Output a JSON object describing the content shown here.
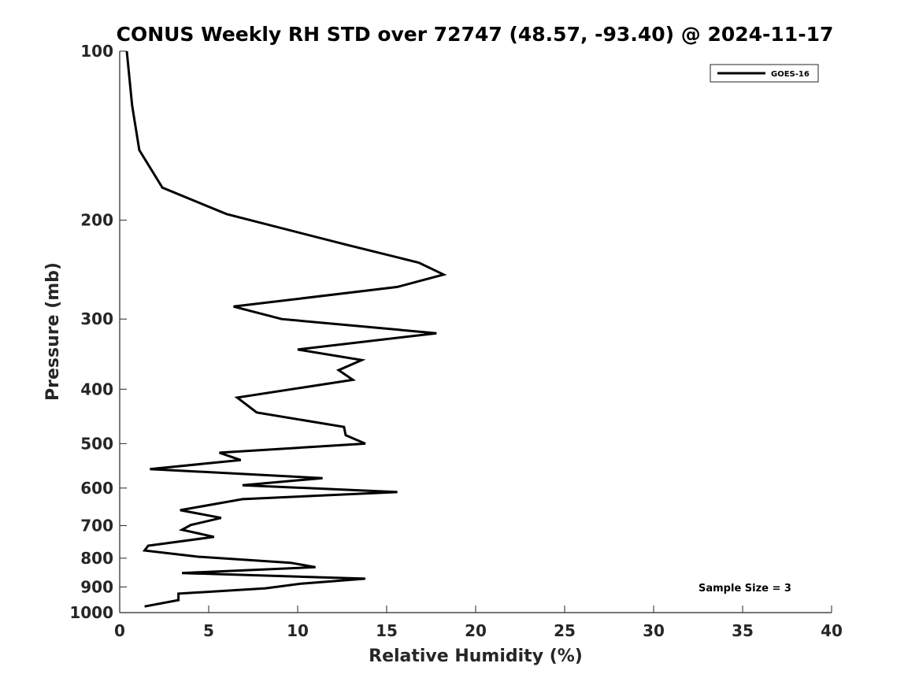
{
  "chart_data": {
    "type": "line",
    "title": "CONUS Weekly RH STD over 72747 (48.57, -93.40) @ 2024-11-17",
    "xlabel": "Relative Humidity (%)",
    "ylabel": "Pressure (mb)",
    "xlim": [
      0,
      40
    ],
    "ylim": [
      1000,
      100
    ],
    "yscale": "log",
    "y_inverted": true,
    "x_ticks": [
      0,
      5,
      10,
      15,
      20,
      25,
      30,
      35,
      40
    ],
    "x_tick_labels": [
      "0",
      "5",
      "10",
      "15",
      "20",
      "25",
      "30",
      "35",
      "40"
    ],
    "y_ticks": [
      100,
      200,
      300,
      400,
      500,
      600,
      700,
      800,
      900,
      1000
    ],
    "y_tick_labels": [
      "100",
      "200",
      "300",
      "400",
      "500",
      "600",
      "700",
      "800",
      "900",
      "1000"
    ],
    "grid": false,
    "legend_position": "top-right",
    "annotation": "Sample Size = 3",
    "series": [
      {
        "name": "GOES-16",
        "color": "#000000",
        "points": [
          [
            0.4,
            100
          ],
          [
            0.7,
            125
          ],
          [
            1.1,
            150
          ],
          [
            2.4,
            175
          ],
          [
            6.0,
            195
          ],
          [
            12.7,
            221
          ],
          [
            16.8,
            238
          ],
          [
            18.2,
            250
          ],
          [
            15.6,
            263
          ],
          [
            6.4,
            285
          ],
          [
            9.1,
            300
          ],
          [
            17.8,
            318
          ],
          [
            10.0,
            340
          ],
          [
            13.6,
            355
          ],
          [
            12.3,
            370
          ],
          [
            13.1,
            385
          ],
          [
            6.6,
            414
          ],
          [
            7.7,
            440
          ],
          [
            12.6,
            467
          ],
          [
            12.7,
            483
          ],
          [
            13.8,
            500
          ],
          [
            5.6,
            519
          ],
          [
            6.8,
            535
          ],
          [
            1.7,
            555
          ],
          [
            11.4,
            576
          ],
          [
            6.9,
            593
          ],
          [
            15.6,
            610
          ],
          [
            6.9,
            628
          ],
          [
            3.4,
            657
          ],
          [
            5.7,
            678
          ],
          [
            4.0,
            698
          ],
          [
            3.5,
            712
          ],
          [
            5.3,
            733
          ],
          [
            1.6,
            760
          ],
          [
            1.4,
            775
          ],
          [
            4.4,
            795
          ],
          [
            9.6,
            815
          ],
          [
            11.0,
            830
          ],
          [
            3.5,
            850
          ],
          [
            13.8,
            870
          ],
          [
            10.2,
            888
          ],
          [
            8.2,
            905
          ],
          [
            3.3,
            925
          ],
          [
            3.3,
            950
          ],
          [
            1.4,
            975
          ]
        ]
      }
    ]
  }
}
